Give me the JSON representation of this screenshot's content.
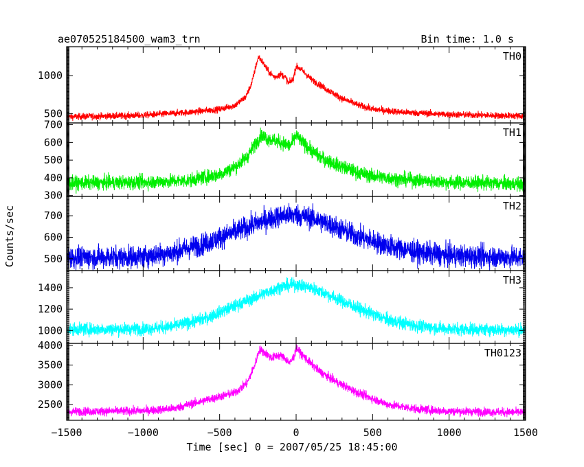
{
  "title_left": "ae070525184500_wam3_trn",
  "title_right": "Bin time: 1.0 s",
  "ylabel": "Counts/sec",
  "xlabel": "Time [sec] 0 = 2007/05/25 18:45:00",
  "chart_data": {
    "type": "line",
    "xlim": [
      -1500,
      1500
    ],
    "x_ticks": [
      -1500,
      -1000,
      -500,
      0,
      500,
      1000,
      1500
    ],
    "x_tick_labels": [
      "−1500",
      "−1000",
      "−500",
      "0",
      "500",
      "1000",
      "1500"
    ],
    "bin_time_s": 1.0,
    "panels": [
      {
        "name": "TH0",
        "color": "#ff0000",
        "ylim": [
          380,
          1380
        ],
        "y_ticks": [
          500,
          1000
        ],
        "noise": 22,
        "profile_x": [
          -1500,
          -1000,
          -700,
          -500,
          -400,
          -330,
          -290,
          -260,
          -245,
          -220,
          -180,
          -140,
          -100,
          -70,
          -50,
          -20,
          0,
          20,
          50,
          100,
          200,
          300,
          400,
          500,
          700,
          1000,
          1250,
          1500
        ],
        "profile_y": [
          460,
          480,
          520,
          560,
          610,
          720,
          900,
          1150,
          1250,
          1180,
          1050,
          980,
          1020,
          980,
          900,
          950,
          1120,
          1100,
          1050,
          950,
          820,
          700,
          620,
          560,
          520,
          490,
          480,
          470
        ]
      },
      {
        "name": "TH1",
        "color": "#00ee00",
        "ylim": [
          295,
          710
        ],
        "y_ticks": [
          300,
          400,
          500,
          600,
          700
        ],
        "y_tick_labels": [
          "300",
          "400",
          "500",
          "600",
          "700"
        ],
        "noise": 20,
        "profile_x": [
          -1500,
          -1000,
          -700,
          -500,
          -400,
          -320,
          -260,
          -230,
          -180,
          -140,
          -100,
          -70,
          -40,
          -10,
          0,
          30,
          80,
          150,
          250,
          400,
          500,
          700,
          1000,
          1500
        ],
        "profile_y": [
          370,
          375,
          385,
          420,
          460,
          520,
          600,
          640,
          620,
          610,
          600,
          590,
          580,
          620,
          640,
          610,
          570,
          520,
          480,
          430,
          410,
          390,
          375,
          365
        ]
      },
      {
        "name": "TH2",
        "color": "#0000ee",
        "ylim": [
          445,
          790
        ],
        "y_ticks": [
          500,
          600,
          700
        ],
        "noise": 26,
        "profile_x": [
          -1500,
          -1000,
          -800,
          -600,
          -400,
          -200,
          -100,
          0,
          100,
          200,
          400,
          600,
          800,
          1000,
          1500
        ],
        "profile_y": [
          505,
          510,
          530,
          570,
          625,
          680,
          700,
          705,
          690,
          665,
          605,
          560,
          530,
          515,
          505
        ]
      },
      {
        "name": "TH3",
        "color": "#00ffff",
        "ylim": [
          880,
          1560
        ],
        "y_ticks": [
          1000,
          1200,
          1400
        ],
        "noise": 30,
        "profile_x": [
          -1500,
          -1000,
          -800,
          -600,
          -400,
          -200,
          -100,
          0,
          100,
          200,
          400,
          600,
          800,
          1000,
          1500
        ],
        "profile_y": [
          1010,
          1015,
          1040,
          1110,
          1230,
          1350,
          1410,
          1430,
          1400,
          1340,
          1210,
          1100,
          1040,
          1015,
          1005
        ]
      },
      {
        "name": "TH0123",
        "color": "#ff00ff",
        "ylim": [
          2100,
          4050
        ],
        "y_ticks": [
          2500,
          3000,
          3500,
          4000
        ],
        "y_tick_labels": [
          "2500",
          "3000",
          "3500",
          "4000"
        ],
        "noise": 55,
        "profile_x": [
          -1500,
          -1000,
          -800,
          -600,
          -400,
          -320,
          -270,
          -240,
          -200,
          -160,
          -120,
          -80,
          -40,
          -10,
          0,
          30,
          80,
          150,
          250,
          400,
          600,
          800,
          1000,
          1500
        ],
        "profile_y": [
          2320,
          2340,
          2400,
          2600,
          2800,
          3050,
          3500,
          3900,
          3800,
          3680,
          3750,
          3700,
          3550,
          3750,
          3950,
          3800,
          3600,
          3350,
          3100,
          2800,
          2500,
          2380,
          2330,
          2300
        ]
      }
    ]
  }
}
